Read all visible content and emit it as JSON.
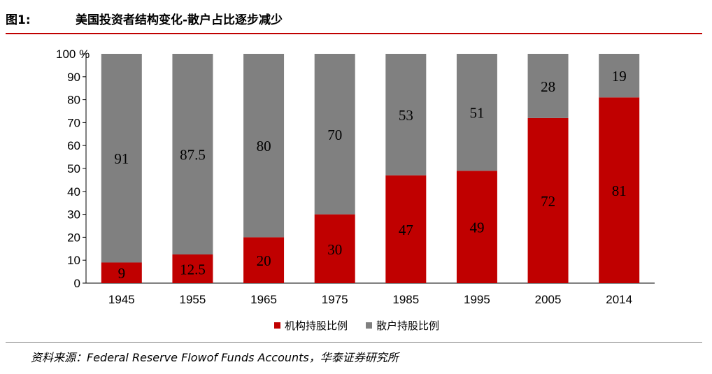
{
  "header": {
    "figure_label": "图1:",
    "title": "美国投资者结构变化-散户占比逐步减少"
  },
  "source": "资料来源：Federal Reserve Flowof Funds Accounts，华泰证券研究所",
  "legend": {
    "institutional_label": "机构持股比例",
    "retail_label": "散户持股比例"
  },
  "colors": {
    "institutional": "#c00000",
    "retail": "#808080",
    "accent_rule": "#c00000"
  },
  "chart_data": {
    "type": "bar",
    "stacked": true,
    "title": "美国投资者结构变化-散户占比逐步减少",
    "categories": [
      "1945",
      "1955",
      "1965",
      "1975",
      "1985",
      "1995",
      "2005",
      "2014"
    ],
    "series": [
      {
        "name": "机构持股比例",
        "values": [
          9,
          12.5,
          20,
          30,
          47,
          49,
          72,
          81
        ],
        "labels": [
          "9",
          "12.5",
          "20",
          "30",
          "47",
          "49",
          "72",
          "81"
        ]
      },
      {
        "name": "散户持股比例",
        "values": [
          91,
          87.5,
          80,
          70,
          53,
          51,
          28,
          19
        ],
        "labels": [
          "91",
          "87.5",
          "80",
          "70",
          "53",
          "51",
          "28",
          "19"
        ]
      }
    ],
    "ylim": [
      0,
      100
    ],
    "yticks": [
      "0",
      "10",
      "20",
      "30",
      "40",
      "50",
      "60",
      "70",
      "80",
      "90",
      "100 %"
    ],
    "xlabel": "",
    "ylabel": "",
    "grid": false,
    "legend_position": "bottom"
  }
}
